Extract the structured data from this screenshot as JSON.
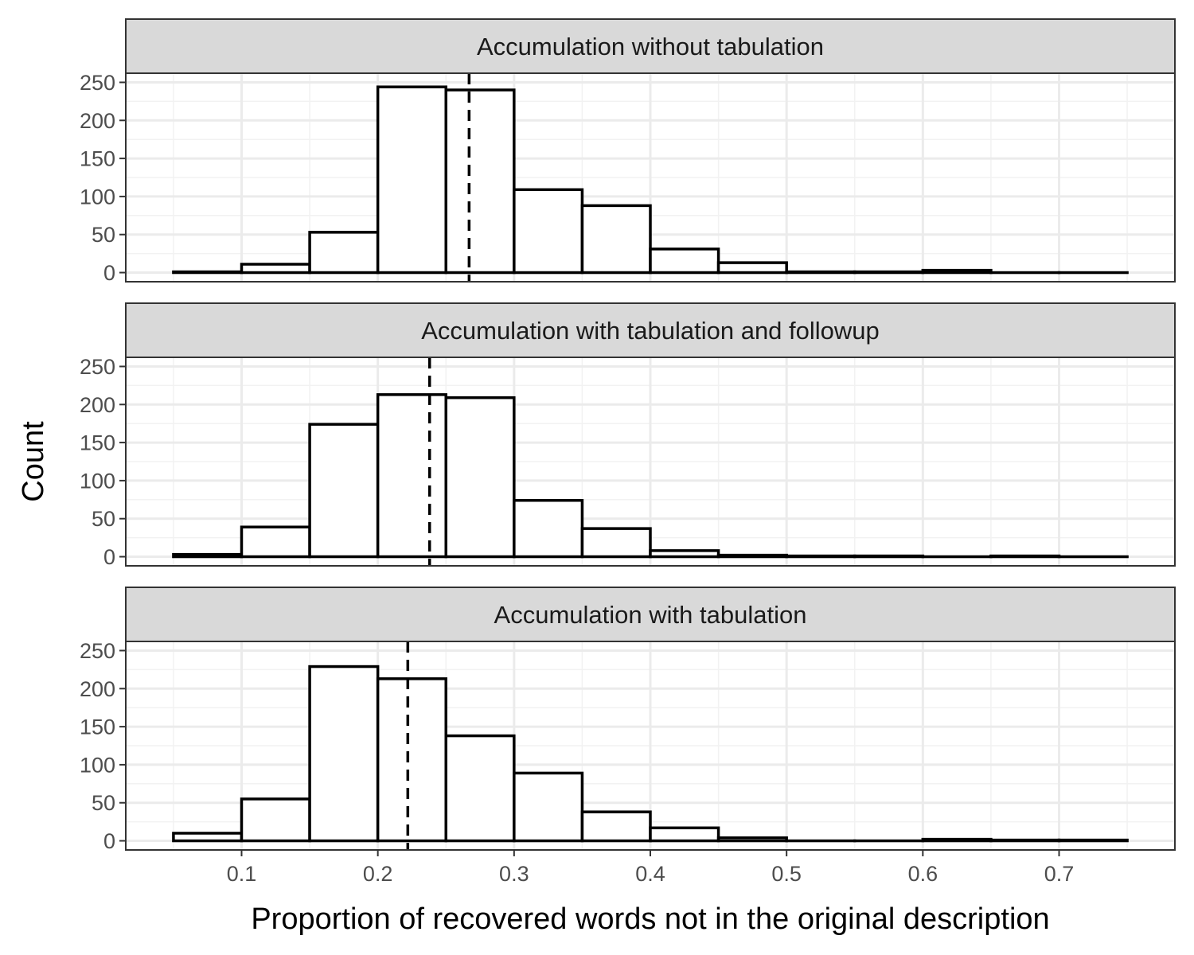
{
  "chart_data": {
    "type": "bar",
    "subtype": "faceted-histogram",
    "xlabel": "Proportion of recovered words not in the original description",
    "ylabel": "Count",
    "x_ticks": [
      0.1,
      0.2,
      0.3,
      0.4,
      0.5,
      0.6,
      0.7
    ],
    "y_ticks": [
      0,
      50,
      100,
      150,
      200,
      250
    ],
    "xlim": [
      0.015,
      0.785
    ],
    "ylim": [
      -12,
      262
    ],
    "grid": true,
    "bin_edges": [
      0.05,
      0.1,
      0.15,
      0.2,
      0.25,
      0.3,
      0.35,
      0.4,
      0.45,
      0.5,
      0.55,
      0.6,
      0.65,
      0.7,
      0.75
    ],
    "panels": [
      {
        "title": "Accumulation without tabulation",
        "counts": [
          1,
          11,
          53,
          244,
          240,
          109,
          88,
          31,
          13,
          1,
          1,
          3,
          0,
          0
        ],
        "mean_line": 0.267
      },
      {
        "title": "Accumulation with tabulation and followup",
        "counts": [
          3,
          39,
          174,
          213,
          209,
          74,
          37,
          8,
          2,
          1,
          1,
          0,
          1,
          0
        ],
        "mean_line": 0.238
      },
      {
        "title": "Accumulation with tabulation",
        "counts": [
          10,
          55,
          229,
          213,
          138,
          89,
          38,
          17,
          4,
          0,
          0,
          2,
          1,
          1
        ],
        "mean_line": 0.222
      }
    ]
  }
}
